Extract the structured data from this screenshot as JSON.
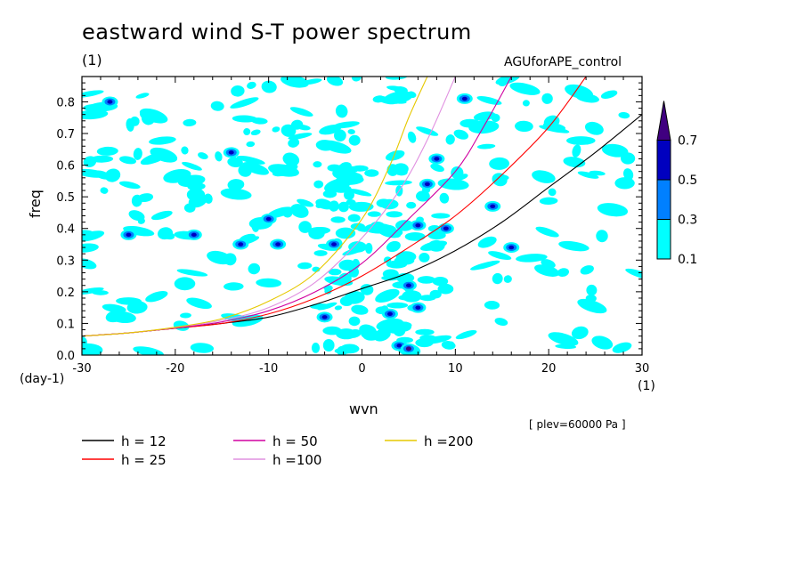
{
  "title": "eastward wind S-T power spectrum",
  "subtitle": "(1)",
  "run_label": "AGUforAPE_control",
  "level_label": "[ plev=60000 Pa ]",
  "colors": {
    "level_0_1": "#00ffff",
    "level_0_3": "#0080ff",
    "level_0_5": "#0000bf",
    "level_0_7": "#400080"
  },
  "chart_data": {
    "type": "heatmap",
    "xlabel": "wvn",
    "ylabel": "freq",
    "x_unit": "(1)",
    "y_unit": "(day-1)",
    "xlim": [
      -30,
      30
    ],
    "ylim": [
      0,
      0.88
    ],
    "x_ticks": [
      "-30",
      "-20",
      "-10",
      "0",
      "10",
      "20",
      "30"
    ],
    "y_ticks": [
      "0.0",
      "0.1",
      "0.2",
      "0.3",
      "0.4",
      "0.5",
      "0.6",
      "0.7",
      "0.8"
    ],
    "colorbar": {
      "levels": [
        "0.1",
        "0.3",
        "0.5",
        "0.7"
      ],
      "colors": [
        "#00ffff",
        "#0080ff",
        "#0000bf",
        "#400080"
      ],
      "extend": "max"
    },
    "dispersion_curves": [
      {
        "label": "h = 12",
        "color": "#000000",
        "points": [
          [
            -30,
            0.06
          ],
          [
            -25,
            0.07
          ],
          [
            -20,
            0.085
          ],
          [
            -15,
            0.1
          ],
          [
            -10,
            0.12
          ],
          [
            -5,
            0.16
          ],
          [
            0,
            0.21
          ],
          [
            5,
            0.26
          ],
          [
            10,
            0.33
          ],
          [
            15,
            0.42
          ],
          [
            20,
            0.53
          ],
          [
            25,
            0.64
          ],
          [
            30,
            0.76
          ]
        ]
      },
      {
        "label": "h = 25",
        "color": "#ff0000",
        "points": [
          [
            -30,
            0.06
          ],
          [
            -25,
            0.07
          ],
          [
            -20,
            0.085
          ],
          [
            -15,
            0.1
          ],
          [
            -10,
            0.13
          ],
          [
            -5,
            0.18
          ],
          [
            0,
            0.25
          ],
          [
            5,
            0.34
          ],
          [
            10,
            0.44
          ],
          [
            15,
            0.57
          ],
          [
            20,
            0.72
          ],
          [
            24,
            0.88
          ]
        ]
      },
      {
        "label": "h = 50",
        "color": "#d000a0",
        "points": [
          [
            -30,
            0.06
          ],
          [
            -25,
            0.07
          ],
          [
            -20,
            0.086
          ],
          [
            -15,
            0.105
          ],
          [
            -10,
            0.14
          ],
          [
            -5,
            0.2
          ],
          [
            0,
            0.29
          ],
          [
            5,
            0.43
          ],
          [
            10,
            0.58
          ],
          [
            13,
            0.72
          ],
          [
            16,
            0.88
          ]
        ]
      },
      {
        "label": "h =100",
        "color": "#e090e0",
        "points": [
          [
            -30,
            0.06
          ],
          [
            -25,
            0.07
          ],
          [
            -20,
            0.087
          ],
          [
            -15,
            0.11
          ],
          [
            -10,
            0.15
          ],
          [
            -5,
            0.23
          ],
          [
            0,
            0.37
          ],
          [
            4,
            0.52
          ],
          [
            7,
            0.68
          ],
          [
            10,
            0.88
          ]
        ]
      },
      {
        "label": "h =200",
        "color": "#e6c800",
        "points": [
          [
            -30,
            0.06
          ],
          [
            -25,
            0.07
          ],
          [
            -20,
            0.088
          ],
          [
            -15,
            0.115
          ],
          [
            -10,
            0.17
          ],
          [
            -5,
            0.26
          ],
          [
            0,
            0.43
          ],
          [
            3,
            0.6
          ],
          [
            5,
            0.75
          ],
          [
            7,
            0.88
          ]
        ]
      }
    ]
  }
}
